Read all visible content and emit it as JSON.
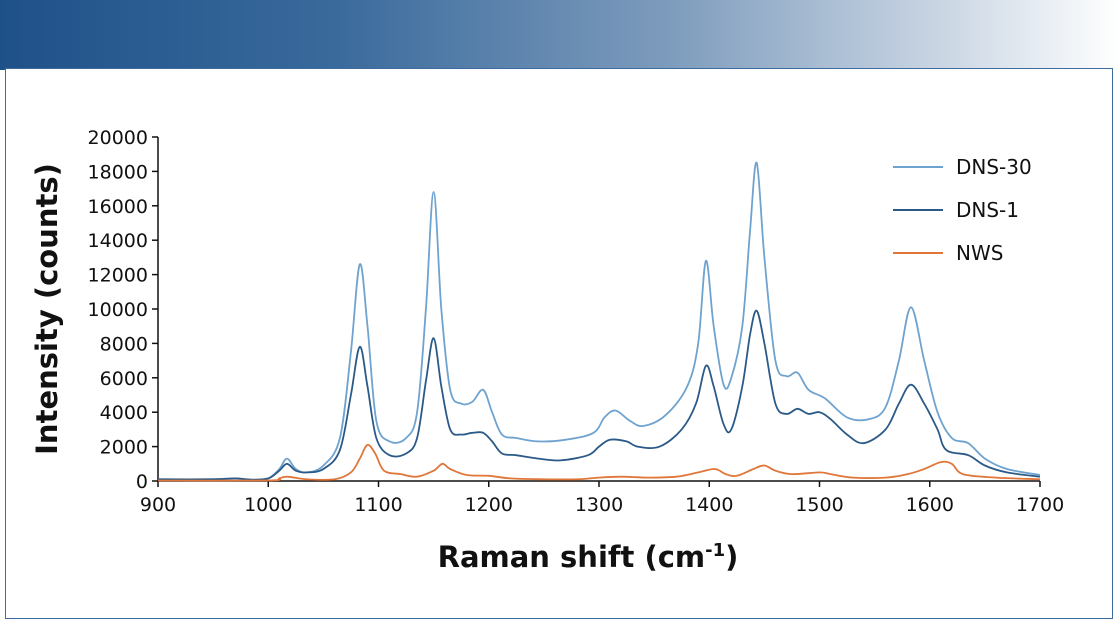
{
  "colors": {
    "header_start": "#1f5189",
    "frame_border": "#3d6d9e"
  },
  "chart_data": {
    "type": "line",
    "xlabel": "Raman shift (cm",
    "xlabel_sup": "-1",
    "xlabel_end": ")",
    "ylabel": "Intensity (counts)",
    "xlim": [
      900,
      1700
    ],
    "ylim": [
      0,
      20000
    ],
    "x_ticks": [
      "900",
      "1000",
      "1100",
      "1200",
      "1300",
      "1400",
      "1500",
      "1600",
      "1700"
    ],
    "y_ticks": [
      "0",
      "2000",
      "4000",
      "6000",
      "8000",
      "10000",
      "12000",
      "14000",
      "16000",
      "18000",
      "20000"
    ],
    "grid": false,
    "legend_position": "top-right",
    "series": [
      {
        "name": "DNS-30",
        "color": "#6fa3cf",
        "points": [
          [
            900,
            100
          ],
          [
            950,
            100
          ],
          [
            970,
            150
          ],
          [
            985,
            50
          ],
          [
            1000,
            150
          ],
          [
            1010,
            700
          ],
          [
            1017,
            1300
          ],
          [
            1025,
            700
          ],
          [
            1035,
            500
          ],
          [
            1050,
            900
          ],
          [
            1065,
            2500
          ],
          [
            1075,
            7500
          ],
          [
            1083,
            12600
          ],
          [
            1090,
            9000
          ],
          [
            1098,
            3500
          ],
          [
            1110,
            2300
          ],
          [
            1125,
            2500
          ],
          [
            1135,
            4000
          ],
          [
            1143,
            10000
          ],
          [
            1150,
            16800
          ],
          [
            1157,
            10000
          ],
          [
            1165,
            5300
          ],
          [
            1175,
            4500
          ],
          [
            1185,
            4600
          ],
          [
            1195,
            5300
          ],
          [
            1203,
            4000
          ],
          [
            1212,
            2700
          ],
          [
            1225,
            2500
          ],
          [
            1245,
            2300
          ],
          [
            1270,
            2400
          ],
          [
            1295,
            2800
          ],
          [
            1305,
            3700
          ],
          [
            1315,
            4100
          ],
          [
            1328,
            3500
          ],
          [
            1340,
            3200
          ],
          [
            1360,
            3800
          ],
          [
            1380,
            5500
          ],
          [
            1390,
            8000
          ],
          [
            1397,
            12800
          ],
          [
            1404,
            9000
          ],
          [
            1413,
            5600
          ],
          [
            1420,
            6000
          ],
          [
            1430,
            9000
          ],
          [
            1437,
            14500
          ],
          [
            1443,
            18500
          ],
          [
            1450,
            13000
          ],
          [
            1460,
            7000
          ],
          [
            1470,
            6100
          ],
          [
            1480,
            6300
          ],
          [
            1490,
            5300
          ],
          [
            1505,
            4800
          ],
          [
            1525,
            3700
          ],
          [
            1545,
            3600
          ],
          [
            1560,
            4300
          ],
          [
            1572,
            7000
          ],
          [
            1583,
            10100
          ],
          [
            1595,
            7000
          ],
          [
            1607,
            4000
          ],
          [
            1620,
            2500
          ],
          [
            1635,
            2200
          ],
          [
            1650,
            1300
          ],
          [
            1670,
            700
          ],
          [
            1700,
            350
          ]
        ]
      },
      {
        "name": "DNS-1",
        "color": "#2c5a88",
        "points": [
          [
            900,
            100
          ],
          [
            950,
            100
          ],
          [
            970,
            150
          ],
          [
            985,
            80
          ],
          [
            1000,
            150
          ],
          [
            1010,
            600
          ],
          [
            1017,
            1000
          ],
          [
            1025,
            600
          ],
          [
            1035,
            500
          ],
          [
            1050,
            700
          ],
          [
            1065,
            1800
          ],
          [
            1075,
            5000
          ],
          [
            1083,
            7800
          ],
          [
            1090,
            5500
          ],
          [
            1098,
            2500
          ],
          [
            1110,
            1500
          ],
          [
            1125,
            1600
          ],
          [
            1135,
            2500
          ],
          [
            1143,
            5800
          ],
          [
            1150,
            8300
          ],
          [
            1157,
            5500
          ],
          [
            1165,
            3000
          ],
          [
            1175,
            2700
          ],
          [
            1185,
            2800
          ],
          [
            1195,
            2800
          ],
          [
            1203,
            2300
          ],
          [
            1212,
            1600
          ],
          [
            1225,
            1500
          ],
          [
            1245,
            1300
          ],
          [
            1265,
            1200
          ],
          [
            1290,
            1500
          ],
          [
            1300,
            2000
          ],
          [
            1310,
            2400
          ],
          [
            1325,
            2300
          ],
          [
            1335,
            2000
          ],
          [
            1355,
            2000
          ],
          [
            1375,
            3000
          ],
          [
            1388,
            4500
          ],
          [
            1397,
            6700
          ],
          [
            1404,
            5500
          ],
          [
            1413,
            3300
          ],
          [
            1420,
            3000
          ],
          [
            1430,
            5500
          ],
          [
            1437,
            8500
          ],
          [
            1443,
            9900
          ],
          [
            1450,
            8000
          ],
          [
            1460,
            4500
          ],
          [
            1470,
            3900
          ],
          [
            1480,
            4200
          ],
          [
            1490,
            3900
          ],
          [
            1500,
            4000
          ],
          [
            1510,
            3600
          ],
          [
            1525,
            2700
          ],
          [
            1540,
            2200
          ],
          [
            1560,
            3000
          ],
          [
            1572,
            4500
          ],
          [
            1583,
            5600
          ],
          [
            1595,
            4500
          ],
          [
            1607,
            3000
          ],
          [
            1615,
            1800
          ],
          [
            1635,
            1500
          ],
          [
            1650,
            900
          ],
          [
            1670,
            500
          ],
          [
            1700,
            250
          ]
        ]
      },
      {
        "name": "NWS",
        "color": "#e0773a",
        "points": [
          [
            900,
            30
          ],
          [
            1000,
            30
          ],
          [
            1010,
            150
          ],
          [
            1017,
            250
          ],
          [
            1035,
            100
          ],
          [
            1060,
            100
          ],
          [
            1075,
            500
          ],
          [
            1083,
            1300
          ],
          [
            1090,
            2100
          ],
          [
            1097,
            1600
          ],
          [
            1105,
            600
          ],
          [
            1120,
            400
          ],
          [
            1135,
            250
          ],
          [
            1150,
            600
          ],
          [
            1158,
            1000
          ],
          [
            1165,
            700
          ],
          [
            1180,
            350
          ],
          [
            1200,
            300
          ],
          [
            1220,
            150
          ],
          [
            1250,
            100
          ],
          [
            1280,
            100
          ],
          [
            1300,
            200
          ],
          [
            1320,
            250
          ],
          [
            1345,
            200
          ],
          [
            1370,
            250
          ],
          [
            1390,
            500
          ],
          [
            1405,
            700
          ],
          [
            1415,
            400
          ],
          [
            1425,
            300
          ],
          [
            1440,
            700
          ],
          [
            1450,
            900
          ],
          [
            1460,
            600
          ],
          [
            1475,
            400
          ],
          [
            1500,
            500
          ],
          [
            1510,
            400
          ],
          [
            1530,
            200
          ],
          [
            1560,
            200
          ],
          [
            1580,
            400
          ],
          [
            1595,
            700
          ],
          [
            1610,
            1100
          ],
          [
            1620,
            1000
          ],
          [
            1630,
            400
          ],
          [
            1660,
            200
          ],
          [
            1700,
            100
          ]
        ]
      }
    ]
  }
}
